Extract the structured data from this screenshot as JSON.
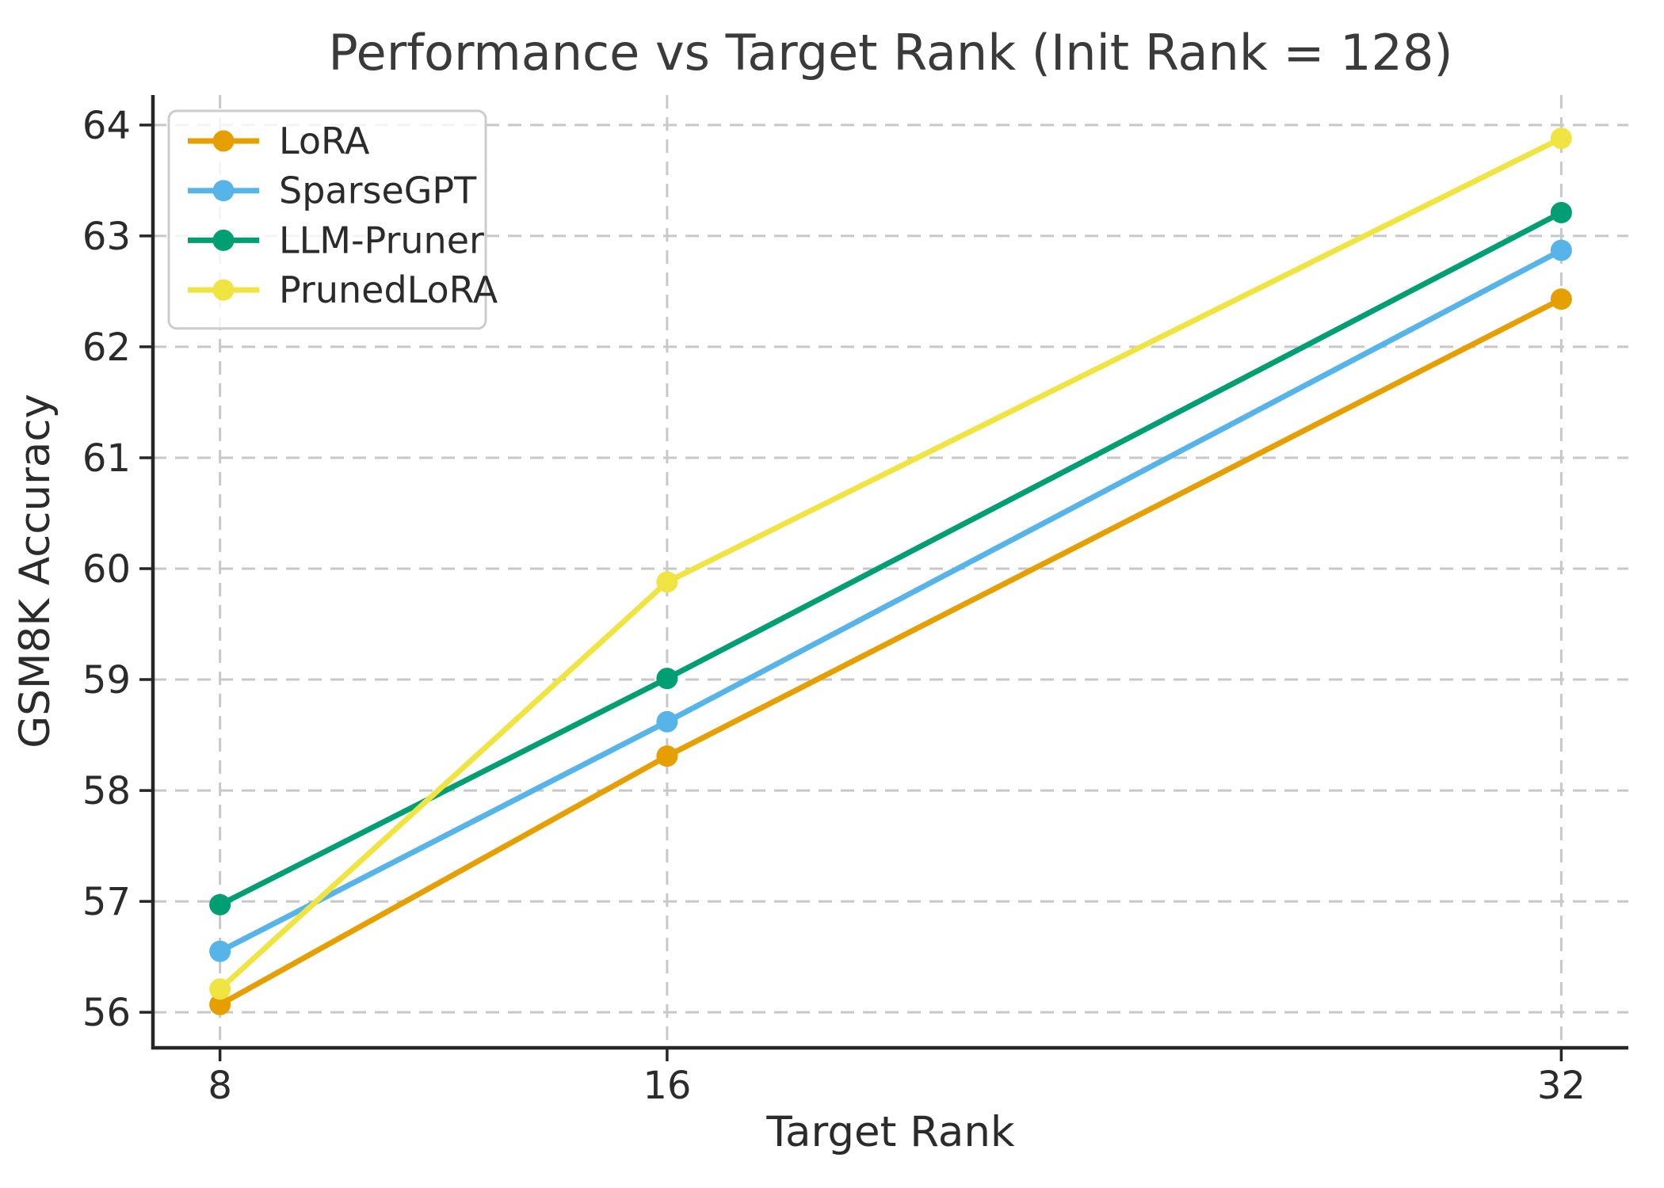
{
  "chart_data": {
    "type": "line",
    "title": "Performance vs Target Rank (Init Rank = 128)",
    "xlabel": "Target Rank",
    "ylabel": "GSM8K Accuracy",
    "x": [
      8,
      16,
      32
    ],
    "x_ticks": [
      "8",
      "16",
      "32"
    ],
    "y_ticks": [
      56,
      57,
      58,
      59,
      60,
      61,
      62,
      63,
      64
    ],
    "xlim": [
      6.8,
      33.2
    ],
    "ylim": [
      55.68,
      64.27
    ],
    "x_scale": "linear",
    "grid": true,
    "grid_style": "dashed",
    "legend_position": "upper left",
    "series": [
      {
        "name": "LoRA",
        "color": "#E69F00",
        "values": [
          56.07,
          58.31,
          62.43
        ]
      },
      {
        "name": "SparseGPT",
        "color": "#56B4E9",
        "values": [
          56.55,
          58.62,
          62.87
        ]
      },
      {
        "name": "LLM-Pruner",
        "color": "#009E73",
        "values": [
          56.97,
          59.01,
          63.21
        ]
      },
      {
        "name": "PrunedLoRA",
        "color": "#F0E442",
        "values": [
          56.21,
          59.88,
          63.88
        ]
      }
    ],
    "colors": {
      "grid": "#c8c8c8",
      "spine": "#262626",
      "tick": "#262626",
      "legend_border": "#cccccc"
    }
  }
}
